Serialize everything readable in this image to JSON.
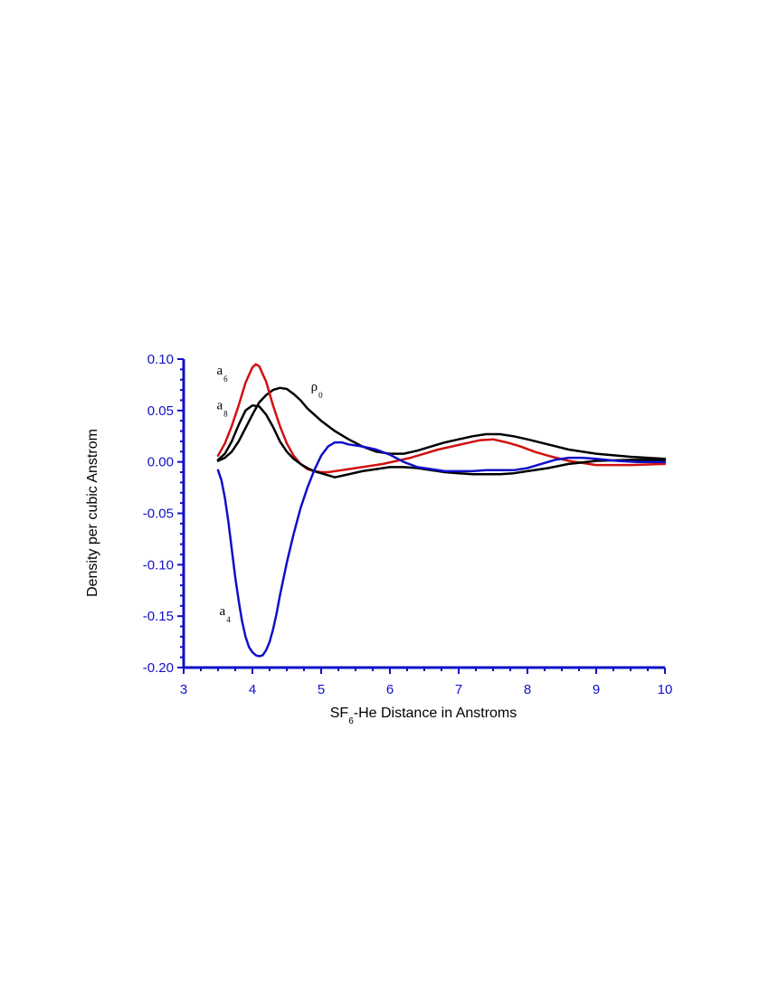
{
  "chart_data": {
    "type": "line",
    "title": "",
    "xlabel_main": "SF",
    "xlabel_sub": "6",
    "xlabel_rest": "-He Distance in Anstroms",
    "ylabel": "Density   per cubic Anstrom",
    "xlim": [
      3,
      10
    ],
    "ylim": [
      -0.2,
      0.1
    ],
    "xticks": [
      3,
      4,
      5,
      6,
      7,
      8,
      9,
      10
    ],
    "xtick_labels": [
      "3",
      "4",
      "5",
      "6",
      "7",
      "8",
      "9",
      "10"
    ],
    "yticks": [
      0.1,
      0.05,
      0.0,
      -0.05,
      -0.1,
      -0.15,
      -0.2
    ],
    "ytick_labels": [
      "0.10",
      "0.05",
      "0.00",
      "-0.05",
      "-0.10",
      "-0.15",
      "-0.20"
    ],
    "grid": false,
    "series": [
      {
        "name_main": "ρ",
        "name_sub": "0",
        "color": "#000000",
        "label_at": [
          4.85,
          0.069
        ],
        "x": [
          3.5,
          3.6,
          3.7,
          3.8,
          3.9,
          4.0,
          4.1,
          4.2,
          4.3,
          4.4,
          4.5,
          4.6,
          4.7,
          4.8,
          5.0,
          5.2,
          5.4,
          5.6,
          5.8,
          6.0,
          6.2,
          6.4,
          6.6,
          6.8,
          7.0,
          7.2,
          7.4,
          7.6,
          7.8,
          8.0,
          8.3,
          8.6,
          9.0,
          9.5,
          10.0
        ],
        "y": [
          0.001,
          0.004,
          0.01,
          0.02,
          0.033,
          0.046,
          0.058,
          0.065,
          0.07,
          0.072,
          0.071,
          0.066,
          0.06,
          0.052,
          0.04,
          0.03,
          0.022,
          0.015,
          0.01,
          0.008,
          0.008,
          0.011,
          0.015,
          0.019,
          0.022,
          0.025,
          0.027,
          0.027,
          0.025,
          0.022,
          0.017,
          0.012,
          0.008,
          0.005,
          0.003
        ]
      },
      {
        "name_main": "a",
        "name_sub": "6",
        "color": "#d01010",
        "label_at": [
          3.48,
          0.085
        ],
        "x": [
          3.5,
          3.6,
          3.7,
          3.8,
          3.9,
          4.0,
          4.05,
          4.1,
          4.2,
          4.3,
          4.4,
          4.5,
          4.6,
          4.7,
          4.8,
          4.9,
          5.0,
          5.1,
          5.3,
          5.5,
          5.7,
          5.9,
          6.1,
          6.3,
          6.5,
          6.7,
          6.9,
          7.1,
          7.3,
          7.5,
          7.7,
          7.9,
          8.1,
          8.3,
          8.6,
          9.0,
          9.5,
          10.0
        ],
        "y": [
          0.006,
          0.018,
          0.035,
          0.055,
          0.077,
          0.092,
          0.095,
          0.093,
          0.078,
          0.055,
          0.035,
          0.018,
          0.006,
          -0.002,
          -0.007,
          -0.009,
          -0.01,
          -0.01,
          -0.008,
          -0.006,
          -0.004,
          -0.002,
          0.001,
          0.004,
          0.008,
          0.012,
          0.015,
          0.018,
          0.021,
          0.022,
          0.019,
          0.015,
          0.01,
          0.006,
          0.001,
          -0.003,
          -0.003,
          -0.002
        ]
      },
      {
        "name_main": "a",
        "name_sub": "8",
        "color": "#000000",
        "label_at": [
          3.48,
          0.051
        ],
        "x": [
          3.5,
          3.6,
          3.7,
          3.8,
          3.9,
          4.0,
          4.1,
          4.2,
          4.3,
          4.4,
          4.5,
          4.6,
          4.7,
          4.8,
          4.9,
          5.0,
          5.1,
          5.2,
          5.4,
          5.6,
          5.8,
          6.0,
          6.2,
          6.4,
          6.6,
          6.8,
          7.0,
          7.2,
          7.4,
          7.6,
          7.8,
          8.0,
          8.3,
          8.6,
          9.0,
          9.5,
          10.0
        ],
        "y": [
          0.002,
          0.008,
          0.02,
          0.036,
          0.05,
          0.055,
          0.054,
          0.046,
          0.034,
          0.02,
          0.01,
          0.003,
          -0.002,
          -0.006,
          -0.009,
          -0.011,
          -0.013,
          -0.015,
          -0.012,
          -0.009,
          -0.007,
          -0.005,
          -0.005,
          -0.006,
          -0.008,
          -0.01,
          -0.011,
          -0.012,
          -0.012,
          -0.012,
          -0.011,
          -0.009,
          -0.006,
          -0.002,
          0.001,
          0.002,
          0.002
        ]
      },
      {
        "name_main": "a",
        "name_sub": "4",
        "color": "#1010c8",
        "label_at": [
          3.52,
          -0.149
        ],
        "x": [
          3.5,
          3.55,
          3.6,
          3.65,
          3.7,
          3.75,
          3.8,
          3.85,
          3.9,
          3.95,
          4.0,
          4.05,
          4.1,
          4.15,
          4.2,
          4.25,
          4.3,
          4.35,
          4.4,
          4.5,
          4.6,
          4.7,
          4.8,
          4.9,
          5.0,
          5.1,
          5.2,
          5.3,
          5.4,
          5.6,
          5.8,
          6.0,
          6.2,
          6.4,
          6.6,
          6.8,
          7.0,
          7.2,
          7.4,
          7.6,
          7.8,
          8.0,
          8.2,
          8.4,
          8.6,
          8.8,
          9.0,
          9.3,
          9.6,
          10.0
        ],
        "y": [
          -0.008,
          -0.018,
          -0.035,
          -0.058,
          -0.085,
          -0.112,
          -0.135,
          -0.155,
          -0.17,
          -0.18,
          -0.185,
          -0.188,
          -0.189,
          -0.188,
          -0.183,
          -0.175,
          -0.163,
          -0.148,
          -0.13,
          -0.098,
          -0.07,
          -0.045,
          -0.025,
          -0.008,
          0.006,
          0.015,
          0.019,
          0.019,
          0.017,
          0.015,
          0.012,
          0.007,
          0.0,
          -0.005,
          -0.007,
          -0.009,
          -0.009,
          -0.009,
          -0.008,
          -0.008,
          -0.008,
          -0.006,
          -0.002,
          0.002,
          0.004,
          0.004,
          0.003,
          0.001,
          0.0,
          0.0
        ]
      }
    ]
  }
}
